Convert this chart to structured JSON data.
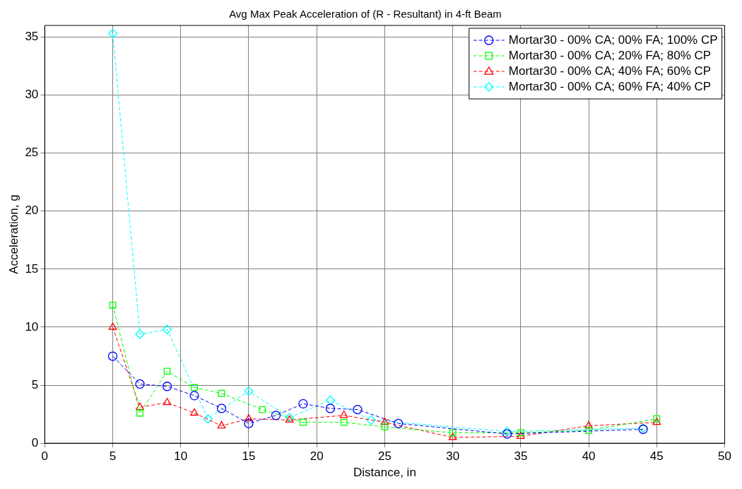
{
  "chart_data": {
    "type": "line",
    "title": "Avg Max Peak Acceleration of (R - Resultant) in 4-ft Beam",
    "xlabel": "Distance, in",
    "ylabel": "Acceleration, g",
    "xlim": [
      0,
      50
    ],
    "xticks": [
      0,
      5,
      10,
      15,
      20,
      25,
      30,
      35,
      40,
      45,
      50
    ],
    "ylim": [
      0,
      36
    ],
    "yticks": [
      0,
      5,
      10,
      15,
      20,
      25,
      30,
      35
    ],
    "grid": true,
    "legend": "top right",
    "line_style": "dashed",
    "series": [
      {
        "name": "Mortar30 - 00% CA; 00% FA; 100% CP",
        "color": "#0000ff",
        "marker": "circle",
        "x": [
          5,
          7,
          9,
          11,
          13,
          15,
          17,
          19,
          21,
          23,
          26,
          34,
          44
        ],
        "values": [
          7.5,
          5.1,
          4.9,
          4.1,
          3.0,
          1.7,
          2.4,
          3.4,
          3.0,
          2.9,
          1.7,
          0.8,
          1.2
        ]
      },
      {
        "name": "Mortar30 - 00% CA; 20% FA; 80% CP",
        "color": "#00ff00",
        "marker": "square",
        "x": [
          5,
          7,
          9,
          11,
          13,
          16,
          19,
          22,
          25,
          30,
          35,
          40,
          45
        ],
        "values": [
          11.9,
          2.6,
          6.2,
          4.8,
          4.3,
          2.9,
          1.8,
          1.8,
          1.4,
          0.9,
          0.9,
          1.1,
          2.1
        ]
      },
      {
        "name": "Mortar30 - 00% CA; 40% FA; 60% CP",
        "color": "#ff0000",
        "marker": "triangle",
        "x": [
          5,
          7,
          9,
          11,
          13,
          15,
          18,
          22,
          25,
          30,
          35,
          40,
          45
        ],
        "values": [
          10.0,
          3.1,
          3.5,
          2.6,
          1.5,
          2.1,
          2.0,
          2.4,
          1.8,
          0.5,
          0.6,
          1.5,
          1.8
        ]
      },
      {
        "name": "Mortar30 - 00% CA; 60% FA; 40% CP",
        "color": "#00ffff",
        "marker": "diamond",
        "x": [
          5,
          7,
          9,
          12,
          15,
          18,
          21,
          24,
          34,
          44
        ],
        "values": [
          35.3,
          9.4,
          9.8,
          2.1,
          4.5,
          2.2,
          3.7,
          2.0,
          1.0,
          1.3
        ]
      }
    ]
  }
}
